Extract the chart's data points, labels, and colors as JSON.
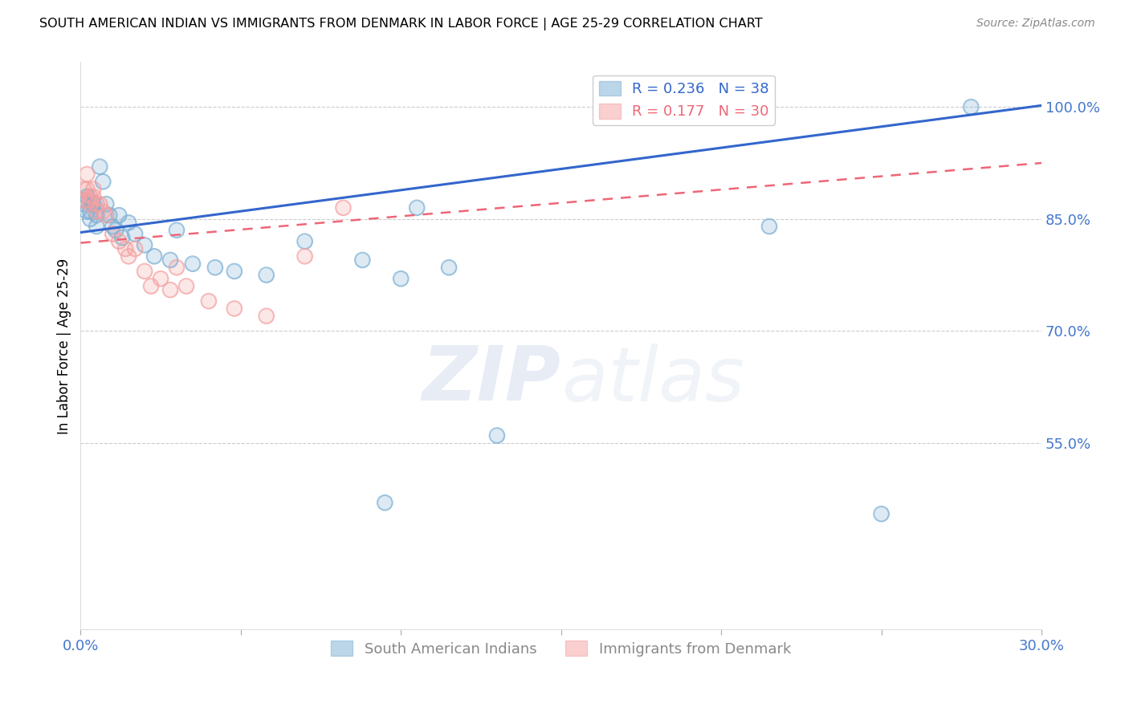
{
  "title": "SOUTH AMERICAN INDIAN VS IMMIGRANTS FROM DENMARK IN LABOR FORCE | AGE 25-29 CORRELATION CHART",
  "source": "Source: ZipAtlas.com",
  "ylabel": "In Labor Force | Age 25-29",
  "legend_label_blue": "South American Indians",
  "legend_label_pink": "Immigrants from Denmark",
  "R_blue": 0.236,
  "N_blue": 38,
  "R_pink": 0.177,
  "N_pink": 30,
  "blue_scatter_color": "#7BAFD4",
  "pink_scatter_color": "#F4A0A0",
  "trendline_blue_color": "#3366CC",
  "trendline_pink_color": "#EE6677",
  "right_ytick_color": "#4477CC",
  "xtick_color": "#4477CC",
  "blue_trendline_x0": 0.0,
  "blue_trendline_y0": 0.832,
  "blue_trendline_x1": 0.3,
  "blue_trendline_y1": 1.002,
  "pink_trendline_x0": 0.0,
  "pink_trendline_y0": 0.818,
  "pink_trendline_x1": 0.3,
  "pink_trendline_y1": 0.925,
  "xlim": [
    0.0,
    0.3
  ],
  "ylim": [
    0.3,
    1.06
  ],
  "right_yticks": [
    0.55,
    0.7,
    0.85,
    1.0
  ],
  "right_yticklabels": [
    "55.0%",
    "70.0%",
    "85.0%",
    "100.0%"
  ],
  "xticks": [
    0.0,
    0.05,
    0.1,
    0.15,
    0.2,
    0.25,
    0.3
  ],
  "xticklabels": [
    "0.0%",
    "",
    "",
    "",
    "",
    "",
    "30.0%"
  ],
  "blue_x": [
    0.001,
    0.001,
    0.002,
    0.002,
    0.003,
    0.003,
    0.004,
    0.005,
    0.005,
    0.006,
    0.007,
    0.008,
    0.009,
    0.01,
    0.011,
    0.012,
    0.013,
    0.015,
    0.017,
    0.02,
    0.023,
    0.028,
    0.03,
    0.035,
    0.042,
    0.048,
    0.058,
    0.07,
    0.088,
    0.1,
    0.115,
    0.13,
    0.095,
    0.105,
    0.21,
    0.215,
    0.25,
    0.278
  ],
  "blue_y": [
    0.875,
    0.87,
    0.88,
    0.86,
    0.86,
    0.85,
    0.87,
    0.855,
    0.84,
    0.92,
    0.9,
    0.87,
    0.855,
    0.84,
    0.835,
    0.855,
    0.825,
    0.845,
    0.83,
    0.815,
    0.8,
    0.795,
    0.835,
    0.79,
    0.785,
    0.78,
    0.775,
    0.82,
    0.795,
    0.77,
    0.785,
    0.56,
    0.47,
    0.865,
    1.0,
    0.84,
    0.455,
    1.0
  ],
  "pink_x": [
    0.001,
    0.001,
    0.002,
    0.002,
    0.003,
    0.003,
    0.003,
    0.004,
    0.004,
    0.005,
    0.005,
    0.006,
    0.007,
    0.008,
    0.01,
    0.012,
    0.014,
    0.015,
    0.017,
    0.02,
    0.022,
    0.025,
    0.028,
    0.03,
    0.033,
    0.04,
    0.048,
    0.058,
    0.07,
    0.082
  ],
  "pink_y": [
    0.875,
    0.89,
    0.91,
    0.89,
    0.88,
    0.875,
    0.87,
    0.89,
    0.88,
    0.87,
    0.86,
    0.87,
    0.86,
    0.855,
    0.83,
    0.82,
    0.81,
    0.8,
    0.81,
    0.78,
    0.76,
    0.77,
    0.755,
    0.785,
    0.76,
    0.74,
    0.73,
    0.72,
    0.8,
    0.865
  ],
  "watermark_zip": "ZIP",
  "watermark_atlas": "atlas",
  "background_color": "#FFFFFF",
  "grid_color": "#CCCCCC",
  "grid_style": "--",
  "scatter_size": 180,
  "scatter_alpha_edge": 0.7,
  "scatter_alpha_fill": 0.25
}
